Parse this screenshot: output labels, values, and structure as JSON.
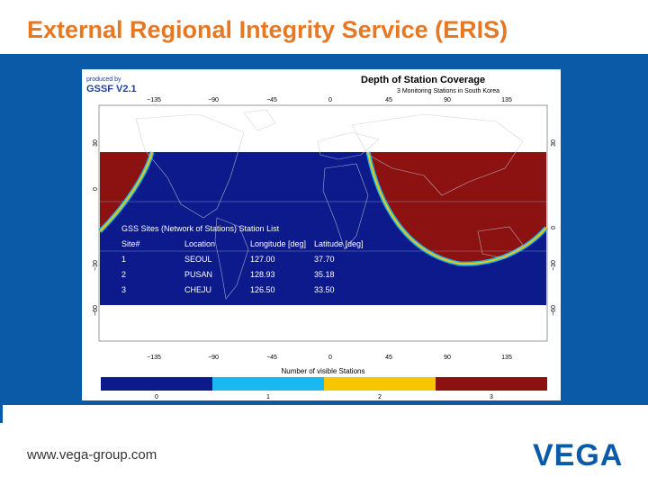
{
  "slide": {
    "title": "External Regional Integrity Service (ERIS)",
    "footer_url": "www.vega-group.com",
    "logo_text": "VEGA"
  },
  "figure": {
    "produced_by": "produced by",
    "software": "GSSF V2.1",
    "title": "Depth of Station Coverage",
    "subtitle": "3 Monitoring Stations in South Korea",
    "lon_ticks": [
      "−135",
      "−90",
      "−45",
      "0",
      "45",
      "90",
      "135"
    ],
    "lat_ticks_left": [
      "30",
      "0",
      "−30",
      "−60"
    ],
    "lat_ticks_right": [
      "30",
      "0",
      "−30",
      "−60"
    ],
    "colorbar_title": "Number of visible Stations",
    "colorbar_ticks": [
      "0",
      "1",
      "2",
      "3"
    ],
    "colorbar_colors": [
      "#0d1a8c",
      "#19b8f0",
      "#f7c600",
      "#8c1212"
    ]
  },
  "station_list": {
    "caption": "GSS Sites (Network of Stations) Station List",
    "headers": [
      "Site#",
      "Location",
      "Longitude [deg]",
      "Latitude [deg]"
    ],
    "rows": [
      [
        "1",
        "SEOUL",
        "127.00",
        "37.70"
      ],
      [
        "2",
        "PUSAN",
        "128.93",
        "35.18"
      ],
      [
        "3",
        "CHEJU",
        "126.50",
        "33.50"
      ]
    ]
  }
}
